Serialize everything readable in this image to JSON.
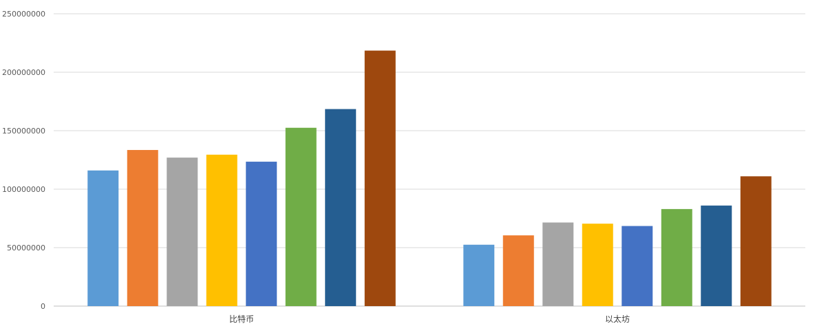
{
  "chart_data": {
    "type": "bar",
    "categories": [
      "比特币",
      "以太坊"
    ],
    "series": [
      {
        "color": "#5B9BD5",
        "values": [
          116000000,
          52500000
        ]
      },
      {
        "color": "#ED7D31",
        "values": [
          133500000,
          60500000
        ]
      },
      {
        "color": "#A5A5A5",
        "values": [
          127000000,
          71500000
        ]
      },
      {
        "color": "#FFC000",
        "values": [
          129500000,
          70500000
        ]
      },
      {
        "color": "#4472C4",
        "values": [
          123500000,
          68500000
        ]
      },
      {
        "color": "#70AD47",
        "values": [
          152500000,
          83000000
        ]
      },
      {
        "color": "#255E91",
        "values": [
          168500000,
          86000000
        ]
      },
      {
        "color": "#9E480E",
        "values": [
          218500000,
          111000000
        ]
      }
    ],
    "yticks": [
      "0",
      "50000000",
      "100000000",
      "150000000",
      "200000000",
      "250000000"
    ],
    "ylim": [
      0,
      250000000
    ],
    "grid": true,
    "title": "",
    "xlabel": "",
    "ylabel": ""
  }
}
